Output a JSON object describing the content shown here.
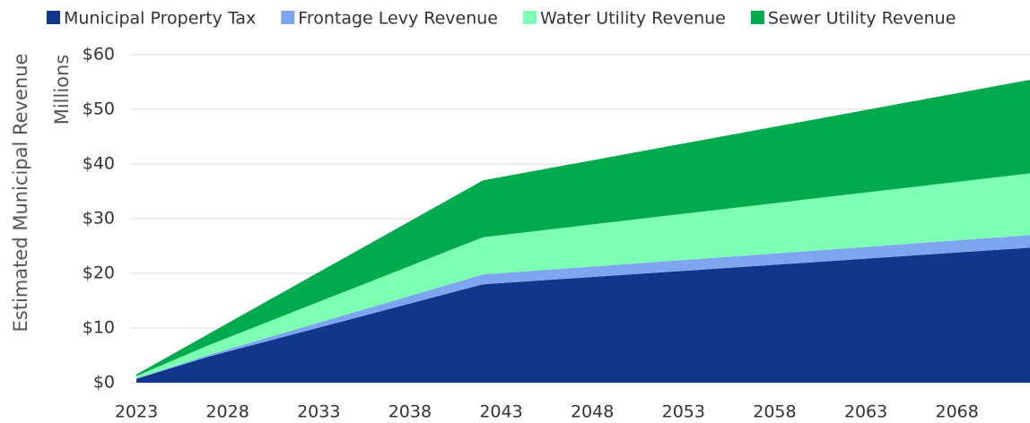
{
  "chart_data": {
    "type": "stacked_area",
    "y_label": "Estimated Municipal Revenue",
    "y_unit_label": "Millions",
    "x": [
      2023,
      2027,
      2042,
      2072
    ],
    "series": [
      {
        "name": "Municipal Property Tax",
        "color": "#12378a",
        "values": [
          0.7,
          4.8,
          18,
          24.7
        ]
      },
      {
        "name": "Frontage Levy Revenue",
        "color": "#7ea6f0",
        "values": [
          0.1,
          0.3,
          1.8,
          2.3
        ]
      },
      {
        "name": "Water Utility Revenue",
        "color": "#7dffb4",
        "values": [
          0.4,
          1.8,
          6.8,
          11.3
        ]
      },
      {
        "name": "Sewer Utility Revenue",
        "color": "#00ab4e",
        "values": [
          0.3,
          2.1,
          10.4,
          17.1
        ]
      }
    ],
    "xlim": [
      2023,
      2072
    ],
    "xticks": [
      2023,
      2028,
      2033,
      2038,
      2043,
      2048,
      2053,
      2058,
      2063,
      2068
    ],
    "ylim": [
      0,
      60
    ],
    "yticks": [
      {
        "value": 0,
        "label": "$0"
      },
      {
        "value": 10,
        "label": "$10"
      },
      {
        "value": 20,
        "label": "$20"
      },
      {
        "value": 30,
        "label": "$30"
      },
      {
        "value": 40,
        "label": "$40"
      },
      {
        "value": 50,
        "label": "$50"
      },
      {
        "value": 60,
        "label": "$60"
      }
    ],
    "grid": true,
    "legend": "top"
  }
}
